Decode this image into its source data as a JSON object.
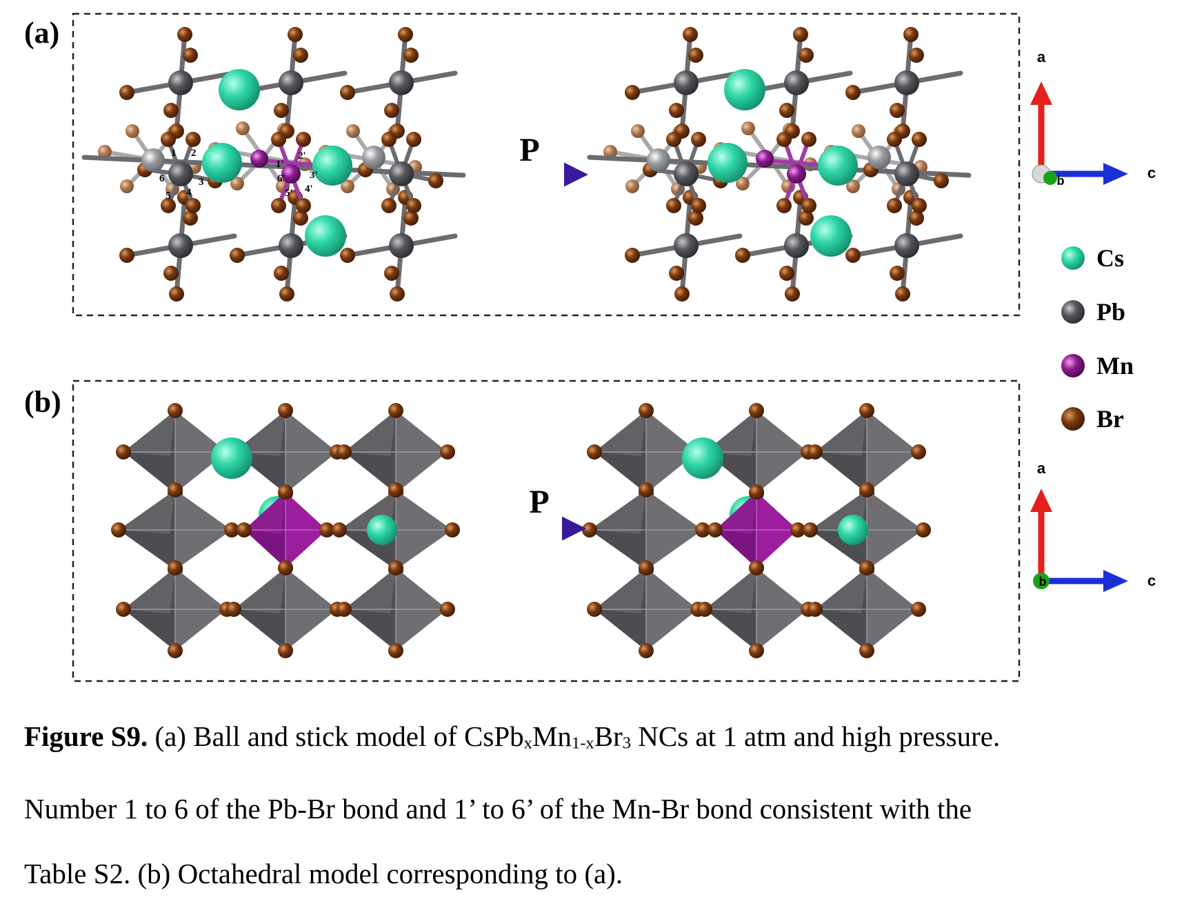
{
  "panels": [
    {
      "label": "(a)",
      "arrow_label": "P",
      "bond_numbers": [
        "1",
        "2",
        "3",
        "4",
        "5",
        "6",
        "1'",
        "2'",
        "3'",
        "4'",
        "5'",
        "6'"
      ],
      "axes": {
        "up": "a",
        "right": "c",
        "center": "b"
      }
    },
    {
      "label": "(b)",
      "arrow_label": "P",
      "axes": {
        "up": "a",
        "right": "c",
        "center": "b"
      }
    }
  ],
  "legend": [
    {
      "label": "Cs",
      "color": "#2fd6a7"
    },
    {
      "label": "Pb",
      "color": "#55575c"
    },
    {
      "label": "Mn",
      "color": "#8d1a8f"
    },
    {
      "label": "Br",
      "color": "#7a3a10"
    }
  ],
  "colors": {
    "Cs": "#2fd6a7",
    "Pb": "#55575c",
    "Pb_light": "#9a9ca0",
    "Mn": "#8d1a8f",
    "Br": "#7a3a10",
    "Br_light": "#b07a52",
    "octa_Pb": "#6a6a6d",
    "octa_Mn": "#8d1a8f",
    "axis_a": "#e3201b",
    "axis_c": "#1b2fd6",
    "axis_b": "#1aa31a"
  },
  "caption": {
    "title": "Figure S9.",
    "line1_a": " (a) Ball and stick model of CsPb",
    "sub_x": "x",
    "line1_b": "Mn",
    "sub_1x": "1-x",
    "line1_c": "Br",
    "sub_3": "3",
    "line1_d": " NCs at 1 atm and high pressure.",
    "line2": "Number 1 to 6 of the Pb-Br bond and 1’ to 6’ of the Mn-Br bond consistent with the",
    "line3": "Table S2. (b) Octahedral model corresponding to (a)."
  }
}
